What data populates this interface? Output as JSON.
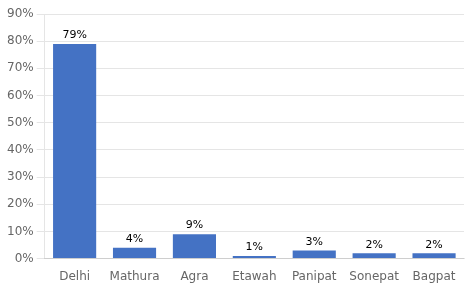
{
  "chart_data": {
    "type": "bar",
    "categories": [
      "Delhi",
      "Mathura",
      "Agra",
      "Etawah",
      "Panipat",
      "Sonepat",
      "Bagpat"
    ],
    "values": [
      79,
      4,
      9,
      1,
      3,
      2,
      2
    ],
    "value_labels": [
      "79%",
      "4%",
      "9%",
      "1%",
      "3%",
      "2%",
      "2%"
    ],
    "color": "#4472C4",
    "ylim": [
      0,
      90
    ],
    "yticks": [
      {
        "value": 0,
        "label": "0%"
      },
      {
        "value": 10,
        "label": "10%"
      },
      {
        "value": 20,
        "label": "20%"
      },
      {
        "value": 30,
        "label": "30%"
      },
      {
        "value": 40,
        "label": "40%"
      },
      {
        "value": 50,
        "label": "50%"
      },
      {
        "value": 60,
        "label": "60%"
      },
      {
        "value": 70,
        "label": "70%"
      },
      {
        "value": 80,
        "label": "80%"
      },
      {
        "value": 90,
        "label": "90%"
      }
    ],
    "grid": true,
    "data_labels": true
  }
}
